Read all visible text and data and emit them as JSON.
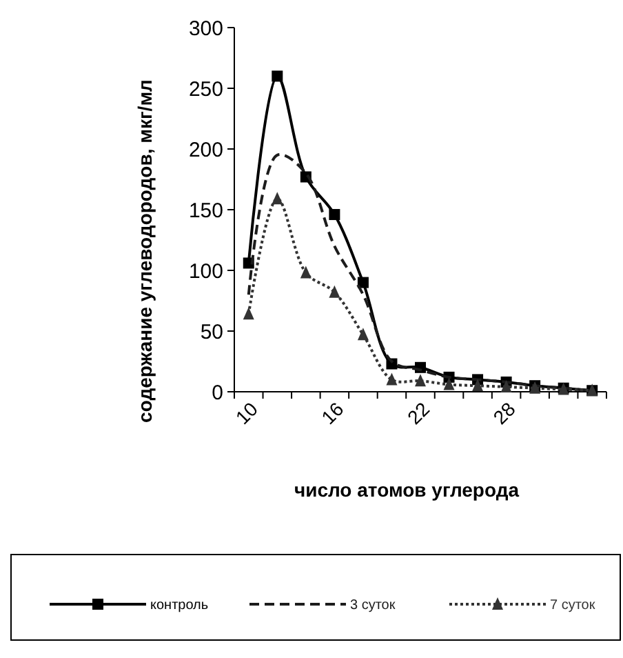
{
  "chart_data": {
    "type": "line",
    "xlabel": "число атомов углерода",
    "ylabel": "содержание углеводородов, мкг/мл",
    "categories": [
      "10",
      null,
      null,
      "16",
      null,
      null,
      "22",
      null,
      null,
      "28",
      null,
      null,
      null
    ],
    "series": [
      {
        "name": "контроль",
        "color": "#000000",
        "marker": "square",
        "line_style": "solid",
        "values": [
          106,
          260,
          177,
          146,
          90,
          23,
          20,
          12,
          10,
          8,
          5,
          3,
          1
        ]
      },
      {
        "name": "3 суток",
        "color": "#1c1c1c",
        "marker": "none",
        "line_style": "dashed",
        "values": [
          80,
          195,
          180,
          120,
          80,
          25,
          18,
          12,
          10,
          8,
          5,
          3,
          1
        ]
      },
      {
        "name": "7 суток",
        "color": "#333333",
        "marker": "triangle",
        "line_style": "dotted",
        "values": [
          64,
          159,
          98,
          82,
          47,
          10,
          9,
          6,
          5,
          4,
          3,
          2,
          1
        ]
      }
    ],
    "ylim": [
      0,
      300
    ],
    "yticks": [
      0,
      50,
      100,
      150,
      200,
      250,
      300
    ],
    "grid": false,
    "legend": "bottom"
  }
}
